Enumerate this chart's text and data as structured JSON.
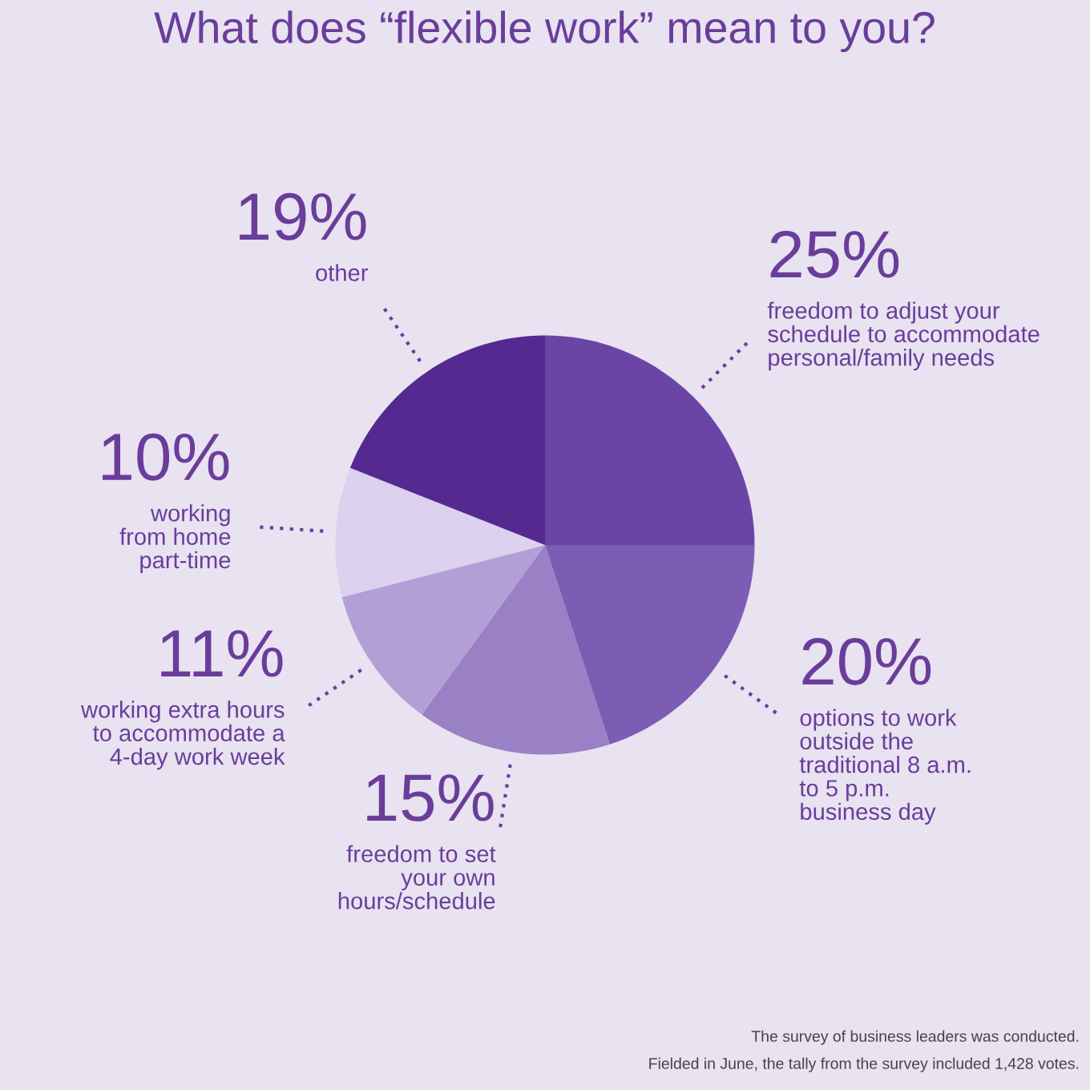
{
  "chart_data": {
    "type": "pie",
    "title": "What does “flexible work” mean to you?",
    "categories": [
      "freedom to adjust your\nschedule to accommodate\npersonal/family needs",
      "options to work\noutside the\ntraditional 8 a.m.\nto 5 p.m.\nbusiness day",
      "freedom to set\nyour own\nhours/schedule",
      "working extra hours\nto accommodate a\n4-day work week",
      "working\nfrom home\npart-time",
      "other"
    ],
    "values": [
      25,
      20,
      15,
      11,
      10,
      19
    ],
    "value_labels": [
      "25%",
      "20%",
      "15%",
      "11%",
      "10%",
      "19%"
    ],
    "colors": [
      "#6a45a6",
      "#7d5db3",
      "#9a80c5",
      "#b39fd6",
      "#dcd1ee",
      "#55298f"
    ],
    "annotations": [
      "The survey of business leaders was conducted.",
      "Fielded in June, the tally from the survey included 1,428 votes."
    ]
  }
}
